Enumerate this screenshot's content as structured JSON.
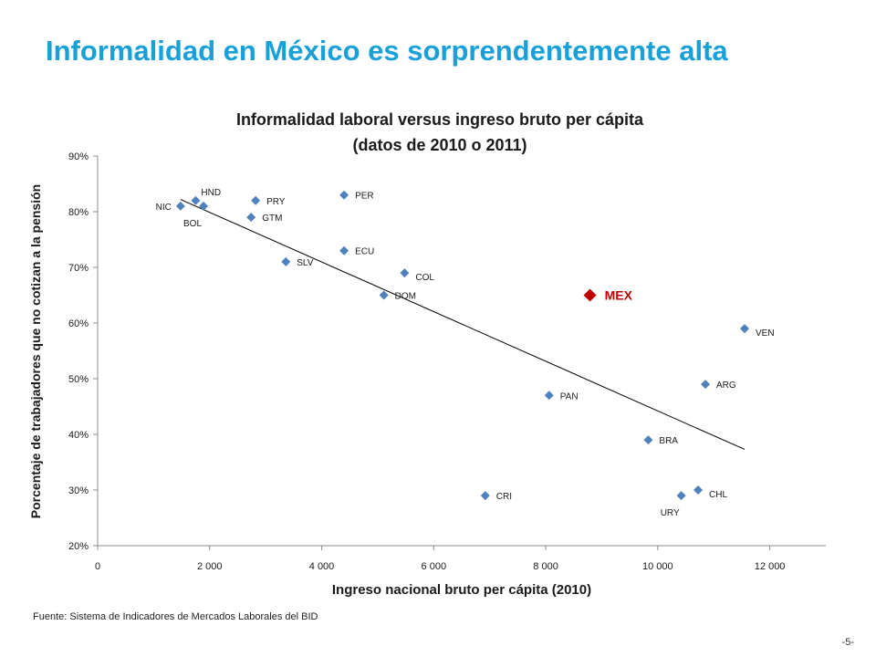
{
  "slide": {
    "title": "Informalidad en México es sorprendentemente alta",
    "source": "Fuente: Sistema de Indicadores de Mercados Laborales del BID",
    "page_number": "-5-"
  },
  "colors": {
    "title": "#1aa0d8",
    "point": "#4f81bd",
    "highlight": "#c00000",
    "trendline": "#000000",
    "axis": "#8c8c8c"
  },
  "chart_data": {
    "type": "scatter",
    "title_lines": [
      "Informalidad laboral versus ingreso bruto per cápita",
      "(datos de 2010 o 2011)"
    ],
    "xlabel": "Ingreso nacional bruto per cápita (2010)",
    "ylabel": "Porcentaje de trabajadores que no cotizan a la pensión",
    "xlim": [
      0,
      13000
    ],
    "ylim": [
      20,
      90
    ],
    "x_ticks": [
      0,
      2000,
      4000,
      6000,
      8000,
      10000,
      12000
    ],
    "x_tick_labels": [
      "0",
      "2 000",
      "4 000",
      "6 000",
      "8 000",
      "10 000",
      "12 000"
    ],
    "y_ticks": [
      20,
      30,
      40,
      50,
      60,
      70,
      80,
      90
    ],
    "y_tick_labels": [
      "20%",
      "30%",
      "40%",
      "50%",
      "60%",
      "70%",
      "80%",
      "90%"
    ],
    "grid": false,
    "legend": "none",
    "points": [
      {
        "label": "NIC",
        "x": 1480,
        "y": 81,
        "label_pos": "left"
      },
      {
        "label": "HND",
        "x": 1750,
        "y": 82,
        "label_pos": "above-right"
      },
      {
        "label": "BOL",
        "x": 1890,
        "y": 81,
        "label_pos": "below-left"
      },
      {
        "label": "PRY",
        "x": 2820,
        "y": 82,
        "label_pos": "right"
      },
      {
        "label": "GTM",
        "x": 2740,
        "y": 79,
        "label_pos": "right"
      },
      {
        "label": "SLV",
        "x": 3360,
        "y": 71,
        "label_pos": "right"
      },
      {
        "label": "PER",
        "x": 4400,
        "y": 83,
        "label_pos": "right"
      },
      {
        "label": "ECU",
        "x": 4400,
        "y": 73,
        "label_pos": "right"
      },
      {
        "label": "COL",
        "x": 5480,
        "y": 69,
        "label_pos": "below-right"
      },
      {
        "label": "DOM",
        "x": 5110,
        "y": 65,
        "label_pos": "right"
      },
      {
        "label": "MEX",
        "x": 8790,
        "y": 65,
        "label_pos": "right",
        "highlight": true
      },
      {
        "label": "VEN",
        "x": 11550,
        "y": 59,
        "label_pos": "below-right"
      },
      {
        "label": "ARG",
        "x": 10850,
        "y": 49,
        "label_pos": "right"
      },
      {
        "label": "PAN",
        "x": 8060,
        "y": 47,
        "label_pos": "right"
      },
      {
        "label": "BRA",
        "x": 9830,
        "y": 39,
        "label_pos": "right"
      },
      {
        "label": "CRI",
        "x": 6920,
        "y": 29,
        "label_pos": "right"
      },
      {
        "label": "URY",
        "x": 10420,
        "y": 29,
        "label_pos": "below-left"
      },
      {
        "label": "CHL",
        "x": 10720,
        "y": 30,
        "label_pos": "below-right"
      }
    ],
    "trendline": {
      "x": [
        1480,
        11550
      ],
      "y": [
        82.2,
        37.3
      ]
    }
  }
}
